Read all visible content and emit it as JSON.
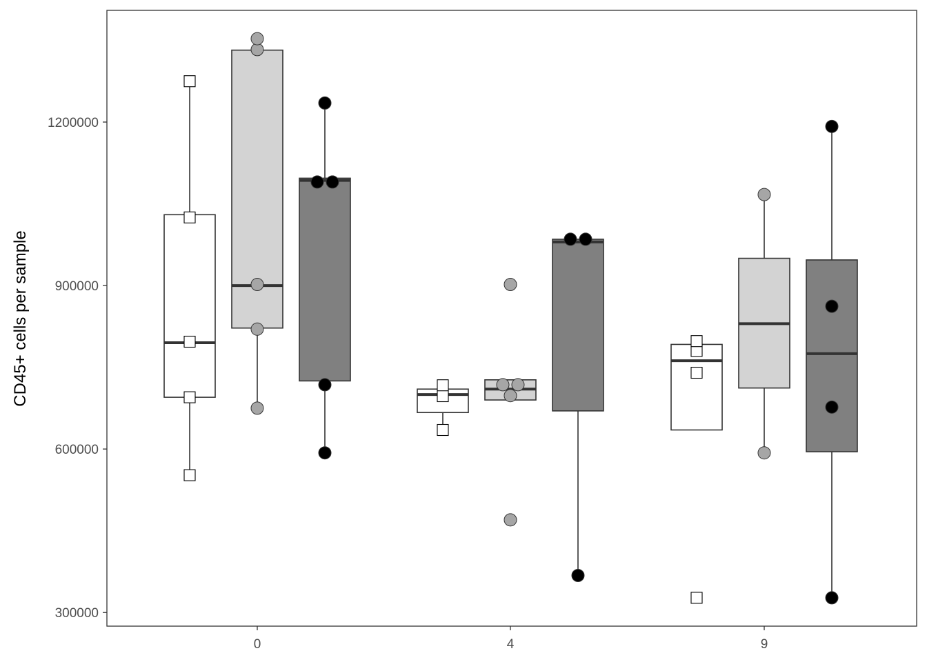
{
  "chart_data": {
    "type": "box",
    "title": "",
    "xlabel": "",
    "ylabel": "CD45+ cells per sample",
    "ylim": [
      275000,
      1405000
    ],
    "y_ticks": [
      300000,
      600000,
      900000,
      1200000
    ],
    "y_tick_labels": [
      "300000",
      "600000",
      "900000",
      "1200000"
    ],
    "categories": [
      "0",
      "4",
      "9"
    ],
    "grid": false,
    "legend": "none",
    "series": [
      {
        "fill": "#ffffff",
        "point_shape": "square",
        "point_fill": "#ffffff",
        "boxes": [
          {
            "category": "0",
            "min": 552000,
            "q1": 695000,
            "median": 795000,
            "q3": 1030000,
            "max": 1275000,
            "points": [
              552000,
              695000,
              797000,
              1025000,
              1275000
            ]
          },
          {
            "category": "4",
            "min": 635000,
            "q1": 667000,
            "median": 700000,
            "q3": 710000,
            "max": 717000,
            "points": [
              635000,
              697000,
              717000
            ]
          },
          {
            "category": "9",
            "min": 635000,
            "q1": 635000,
            "median": 762000,
            "q3": 792000,
            "max": 798000,
            "points": [
              327000,
              740000,
              780000,
              798000
            ]
          }
        ]
      },
      {
        "fill": "#d3d3d3",
        "point_shape": "circle",
        "point_fill": "#a6a6a6",
        "boxes": [
          {
            "category": "0",
            "min": 675000,
            "q1": 822000,
            "median": 900000,
            "q3": 1332000,
            "max": 1352000,
            "points": [
              675000,
              820000,
              902000,
              1333000,
              1353000
            ]
          },
          {
            "category": "4",
            "min": 690000,
            "q1": 690000,
            "median": 710000,
            "q3": 727000,
            "max": 727000,
            "points": [
              470000,
              698000,
              718000,
              718000,
              902000
            ]
          },
          {
            "category": "9",
            "min": 593000,
            "q1": 712000,
            "median": 830000,
            "q3": 950000,
            "max": 1067000,
            "points": [
              593000,
              1067000
            ]
          }
        ]
      },
      {
        "fill": "#808080",
        "point_shape": "circle",
        "point_fill": "#000000",
        "boxes": [
          {
            "category": "0",
            "min": 593000,
            "q1": 725000,
            "median": 1093000,
            "q3": 1097000,
            "max": 1235000,
            "points": [
              593000,
              718000,
              1090000,
              1090000,
              1235000
            ]
          },
          {
            "category": "4",
            "min": 368000,
            "q1": 670000,
            "median": 980000,
            "q3": 985000,
            "max": 985000,
            "points": [
              368000,
              985000,
              985000
            ]
          },
          {
            "category": "9",
            "min": 327000,
            "q1": 595000,
            "median": 775000,
            "q3": 947000,
            "max": 1192000,
            "points": [
              327000,
              677000,
              862000,
              1192000
            ]
          }
        ]
      }
    ]
  }
}
